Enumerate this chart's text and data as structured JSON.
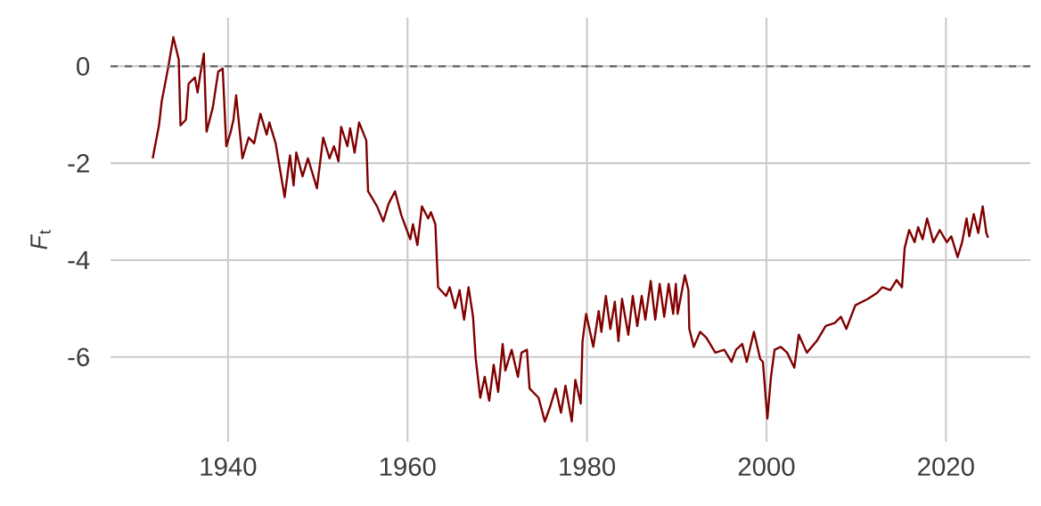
{
  "chart_data": {
    "type": "line",
    "ylabel": "*F*$_{t}$",
    "x": [
      1931.6,
      1932.3,
      1932.6,
      1933.3,
      1933.9,
      1934.5,
      1934.7,
      1935.3,
      1935.6,
      1936.3,
      1936.6,
      1936.9,
      1937.3,
      1937.6,
      1938.3,
      1938.9,
      1939.4,
      1939.8,
      1940.3,
      1940.6,
      1940.9,
      1941.6,
      1942.3,
      1942.9,
      1943.6,
      1944.3,
      1944.6,
      1945.3,
      1946.3,
      1946.9,
      1947.3,
      1947.6,
      1948.3,
      1948.9,
      1949.6,
      1949.9,
      1950.6,
      1951.3,
      1951.8,
      1952.3,
      1952.6,
      1953.3,
      1953.6,
      1954.1,
      1954.6,
      1955.4,
      1955.6,
      1956.6,
      1957.3,
      1957.9,
      1958.6,
      1959.3,
      1960.3,
      1960.6,
      1961.1,
      1961.6,
      1962.3,
      1962.6,
      1963.1,
      1963.4,
      1964.3,
      1964.7,
      1965.3,
      1965.8,
      1966.3,
      1966.8,
      1967.3,
      1967.6,
      1968.1,
      1968.6,
      1969.1,
      1969.6,
      1970.1,
      1970.6,
      1970.9,
      1971.6,
      1972.3,
      1972.7,
      1973.3,
      1973.6,
      1974.6,
      1975.3,
      1975.9,
      1976.5,
      1977.1,
      1977.6,
      1978.3,
      1978.7,
      1979.3,
      1979.5,
      1979.9,
      1980.7,
      1981.3,
      1981.6,
      1982.1,
      1982.6,
      1983.1,
      1983.5,
      1983.9,
      1984.6,
      1985.1,
      1985.6,
      1986.1,
      1986.5,
      1987.1,
      1987.6,
      1988.1,
      1988.6,
      1989.1,
      1989.6,
      1989.9,
      1990.1,
      1990.9,
      1991.3,
      1991.4,
      1991.9,
      1992.6,
      1993.3,
      1994.3,
      1995.3,
      1996.1,
      1996.6,
      1997.3,
      1997.8,
      1998.6,
      1999.3,
      1999.6,
      2000.1,
      2000.5,
      2000.9,
      2001.6,
      2002.3,
      2003.1,
      2003.6,
      2004.5,
      2005.6,
      2006.6,
      2007.6,
      2008.3,
      2008.9,
      2009.9,
      2011.3,
      2012.3,
      2012.9,
      2013.8,
      2014.5,
      2015.1,
      2015.4,
      2015.9,
      2016.5,
      2016.9,
      2017.4,
      2017.9,
      2018.6,
      2019.3,
      2020.1,
      2020.6,
      2021.3,
      2021.8,
      2022.3,
      2022.6,
      2023.1,
      2023.6,
      2024.1,
      2024.5,
      2024.7
    ],
    "series": [
      {
        "color": "#800000",
        "values": [
          -1.9,
          -1.22,
          -0.73,
          -0.05,
          0.6,
          0.14,
          -1.22,
          -1.1,
          -0.36,
          -0.23,
          -0.54,
          -0.17,
          0.26,
          -1.35,
          -0.85,
          -0.11,
          -0.05,
          -1.65,
          -1.35,
          -1.1,
          -0.6,
          -1.9,
          -1.47,
          -1.59,
          -0.98,
          -1.41,
          -1.16,
          -1.59,
          -2.7,
          -1.84,
          -2.46,
          -1.78,
          -2.27,
          -1.9,
          -2.33,
          -2.52,
          -1.47,
          -1.9,
          -1.65,
          -1.96,
          -1.25,
          -1.65,
          -1.28,
          -1.78,
          -1.16,
          -1.53,
          -2.58,
          -2.89,
          -3.2,
          -2.83,
          -2.58,
          -3.07,
          -3.57,
          -3.26,
          -3.69,
          -2.89,
          -3.14,
          -3.01,
          -3.26,
          -4.56,
          -4.74,
          -4.56,
          -4.99,
          -4.62,
          -5.23,
          -4.56,
          -5.17,
          -6.04,
          -6.84,
          -6.41,
          -6.9,
          -6.16,
          -6.72,
          -5.73,
          -6.28,
          -5.85,
          -6.41,
          -5.91,
          -5.85,
          -6.65,
          -6.84,
          -7.33,
          -7.02,
          -6.65,
          -7.15,
          -6.59,
          -7.33,
          -6.47,
          -6.96,
          -5.67,
          -5.11,
          -5.79,
          -5.05,
          -5.48,
          -4.74,
          -5.42,
          -4.86,
          -5.67,
          -4.8,
          -5.54,
          -4.74,
          -5.36,
          -4.74,
          -5.23,
          -4.43,
          -5.23,
          -4.49,
          -5.17,
          -4.49,
          -5.11,
          -4.49,
          -5.11,
          -4.31,
          -4.62,
          -5.42,
          -5.79,
          -5.48,
          -5.6,
          -5.91,
          -5.85,
          -6.1,
          -5.85,
          -5.73,
          -6.1,
          -5.48,
          -6.04,
          -6.1,
          -7.27,
          -6.41,
          -5.85,
          -5.79,
          -5.91,
          -6.22,
          -5.54,
          -5.91,
          -5.67,
          -5.36,
          -5.3,
          -5.17,
          -5.42,
          -4.93,
          -4.8,
          -4.68,
          -4.56,
          -4.62,
          -4.41,
          -4.56,
          -3.75,
          -3.38,
          -3.63,
          -3.32,
          -3.57,
          -3.14,
          -3.63,
          -3.38,
          -3.63,
          -3.51,
          -3.94,
          -3.63,
          -3.14,
          -3.51,
          -3.05,
          -3.44,
          -2.89,
          -3.44,
          -3.54
        ]
      }
    ],
    "xlim": [
      1926.9,
      2029.4
    ],
    "ylim": [
      -7.75,
      1.0
    ],
    "xticks": [
      1940,
      1960,
      1980,
      2000,
      2020
    ],
    "yticks": [
      -6,
      -4,
      -2,
      0
    ],
    "grid": true,
    "marker": "none",
    "line_style": "solid",
    "ref_lines": [
      {
        "axis": "y",
        "value": 0,
        "color": "#666666",
        "line_style": "dashed"
      }
    ]
  }
}
